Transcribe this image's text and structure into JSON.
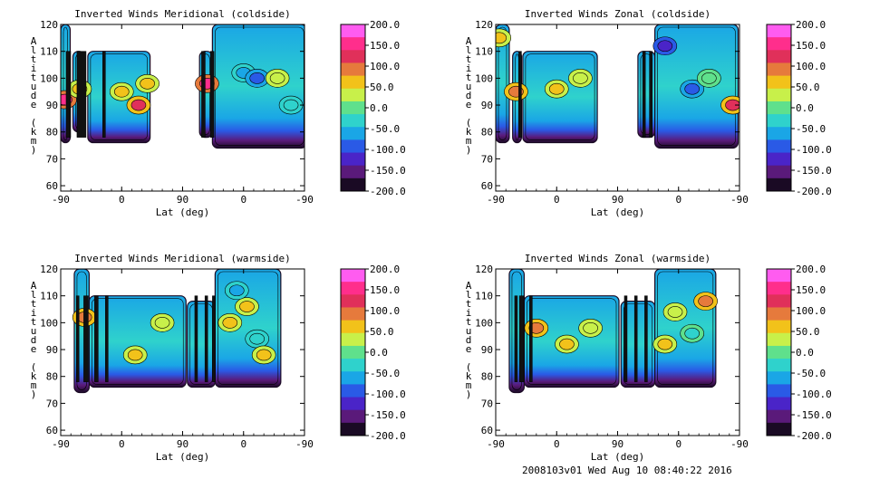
{
  "footer": "2008103v01 Wed Aug 10 08:40:22 2016",
  "colorbar": {
    "labels": [
      "200.0",
      "150.0",
      "100.0",
      "50.0",
      "0.0",
      "-50.0",
      "-100.0",
      "-150.0",
      "-200.0"
    ],
    "colors": [
      "#ff5cf0",
      "#ff2e8c",
      "#e0305a",
      "#e67a3c",
      "#f2c21a",
      "#c8f04a",
      "#5fe08c",
      "#2fd2cc",
      "#1aa6e6",
      "#2a5ae6",
      "#4a24c8",
      "#5a1a7a",
      "#1a0a24"
    ]
  },
  "chart_data": [
    {
      "type": "heatmap",
      "title": "Inverted Winds Meridional (coldside)",
      "xlabel": "Lat (deg)",
      "ylabel": "Altitude (km)",
      "xticks": [
        "-90",
        "0",
        "90",
        "0",
        "-90"
      ],
      "yticks": [
        "60",
        "70",
        "80",
        "90",
        "100",
        "110",
        "120"
      ],
      "ylim": [
        58,
        120
      ],
      "clim": [
        -200,
        200
      ],
      "blocks": [
        {
          "x": [
            -90,
            -76
          ],
          "y": [
            76,
            120
          ]
        },
        {
          "x": [
            -72,
            -55
          ],
          "y": [
            80,
            110
          ]
        },
        {
          "x": [
            -50,
            42
          ],
          "y": [
            76,
            110
          ]
        },
        {
          "x": [
            115,
            134
          ],
          "y": [
            78,
            110
          ]
        },
        {
          "x": [
            134,
            273
          ],
          "y": [
            74,
            120
          ]
        }
      ],
      "highlights": [
        {
          "x": -84,
          "y": 92,
          "v": 140
        },
        {
          "x": -62,
          "y": 96,
          "v": 60
        },
        {
          "x": 0,
          "y": 95,
          "v": 70
        },
        {
          "x": 25,
          "y": 90,
          "v": 110
        },
        {
          "x": 38,
          "y": 98,
          "v": 60
        },
        {
          "x": 126,
          "y": 98,
          "v": 150
        },
        {
          "x": 180,
          "y": 102,
          "v": -60
        },
        {
          "x": 200,
          "y": 100,
          "v": -90
        },
        {
          "x": 230,
          "y": 100,
          "v": 30
        },
        {
          "x": 250,
          "y": 90,
          "v": -40
        }
      ],
      "dark_bands": [
        {
          "x": -82,
          "w": 5
        },
        {
          "x": -66,
          "w": 10
        },
        {
          "x": -28,
          "w": 3
        },
        {
          "x": 118,
          "w": 4
        },
        {
          "x": 131,
          "w": 4
        }
      ]
    },
    {
      "type": "heatmap",
      "title": "Inverted Winds Zonal (coldside)",
      "xlabel": "Lat (deg)",
      "ylabel": "Altitude (km)",
      "xticks": [
        "-90",
        "0",
        "90",
        "0",
        "-90"
      ],
      "yticks": [
        "60",
        "70",
        "80",
        "90",
        "100",
        "110",
        "120"
      ],
      "ylim": [
        58,
        120
      ],
      "clim": [
        -200,
        200
      ],
      "blocks": [
        {
          "x": [
            -90,
            -70
          ],
          "y": [
            76,
            120
          ]
        },
        {
          "x": [
            -65,
            -52
          ],
          "y": [
            76,
            110
          ]
        },
        {
          "x": [
            -50,
            60
          ],
          "y": [
            76,
            110
          ]
        },
        {
          "x": [
            120,
            145
          ],
          "y": [
            78,
            110
          ]
        },
        {
          "x": [
            145,
            268
          ],
          "y": [
            74,
            120
          ]
        }
      ],
      "highlights": [
        {
          "x": -85,
          "y": 115,
          "v": 60
        },
        {
          "x": -60,
          "y": 95,
          "v": 80
        },
        {
          "x": 0,
          "y": 96,
          "v": 50
        },
        {
          "x": 35,
          "y": 100,
          "v": 30
        },
        {
          "x": 200,
          "y": 96,
          "v": -80
        },
        {
          "x": 225,
          "y": 100,
          "v": 10
        },
        {
          "x": 260,
          "y": 90,
          "v": 110
        },
        {
          "x": 160,
          "y": 112,
          "v": -130
        }
      ],
      "dark_bands": [
        {
          "x": -56,
          "w": 3
        },
        {
          "x": 127,
          "w": 3
        },
        {
          "x": 137,
          "w": 3
        }
      ]
    },
    {
      "type": "heatmap",
      "title": "Inverted Winds Meridional (warmside)",
      "xlabel": "Lat (deg)",
      "ylabel": "Altitude (km)",
      "xticks": [
        "-90",
        "0",
        "90",
        "0",
        "-90"
      ],
      "yticks": [
        "60",
        "70",
        "80",
        "90",
        "100",
        "110",
        "120"
      ],
      "ylim": [
        58,
        120
      ],
      "clim": [
        -200,
        200
      ],
      "blocks": [
        {
          "x": [
            -70,
            -48
          ],
          "y": [
            74,
            120
          ]
        },
        {
          "x": [
            -48,
            95
          ],
          "y": [
            76,
            110
          ]
        },
        {
          "x": [
            97,
            138
          ],
          "y": [
            76,
            108
          ]
        },
        {
          "x": [
            138,
            235
          ],
          "y": [
            76,
            120
          ]
        }
      ],
      "highlights": [
        {
          "x": -55,
          "y": 102,
          "v": 80
        },
        {
          "x": 20,
          "y": 88,
          "v": 60
        },
        {
          "x": 60,
          "y": 100,
          "v": 30
        },
        {
          "x": 160,
          "y": 100,
          "v": 60
        },
        {
          "x": 185,
          "y": 106,
          "v": 50
        },
        {
          "x": 200,
          "y": 94,
          "v": -40
        },
        {
          "x": 210,
          "y": 88,
          "v": 70
        },
        {
          "x": 170,
          "y": 112,
          "v": -60
        }
      ],
      "dark_bands": [
        {
          "x": -67,
          "w": 3
        },
        {
          "x": -56,
          "w": 5
        },
        {
          "x": -40,
          "w": 4
        },
        {
          "x": -24,
          "w": 3
        },
        {
          "x": 108,
          "w": 3
        },
        {
          "x": 123,
          "w": 3
        },
        {
          "x": 134,
          "w": 3
        }
      ]
    },
    {
      "type": "heatmap",
      "title": "Inverted Winds Zonal (warmside)",
      "xlabel": "Lat (deg)",
      "ylabel": "Altitude (km)",
      "xticks": [
        "-90",
        "0",
        "90",
        "0",
        "-90"
      ],
      "yticks": [
        "60",
        "70",
        "80",
        "90",
        "100",
        "110",
        "120"
      ],
      "ylim": [
        58,
        120
      ],
      "clim": [
        -200,
        200
      ],
      "blocks": [
        {
          "x": [
            -70,
            -48
          ],
          "y": [
            74,
            120
          ]
        },
        {
          "x": [
            -48,
            92
          ],
          "y": [
            76,
            110
          ]
        },
        {
          "x": [
            95,
            145
          ],
          "y": [
            76,
            108
          ]
        },
        {
          "x": [
            145,
            235
          ],
          "y": [
            76,
            120
          ]
        }
      ],
      "highlights": [
        {
          "x": -30,
          "y": 98,
          "v": 80
        },
        {
          "x": 15,
          "y": 92,
          "v": 60
        },
        {
          "x": 50,
          "y": 98,
          "v": 40
        },
        {
          "x": 175,
          "y": 104,
          "v": 40
        },
        {
          "x": 200,
          "y": 96,
          "v": -20
        },
        {
          "x": 220,
          "y": 108,
          "v": 100
        },
        {
          "x": 160,
          "y": 92,
          "v": 60
        }
      ],
      "dark_bands": [
        {
          "x": -62,
          "w": 3
        },
        {
          "x": -55,
          "w": 5
        },
        {
          "x": -40,
          "w": 3
        },
        {
          "x": 100,
          "w": 3
        },
        {
          "x": 115,
          "w": 3
        },
        {
          "x": 130,
          "w": 3
        }
      ]
    }
  ]
}
